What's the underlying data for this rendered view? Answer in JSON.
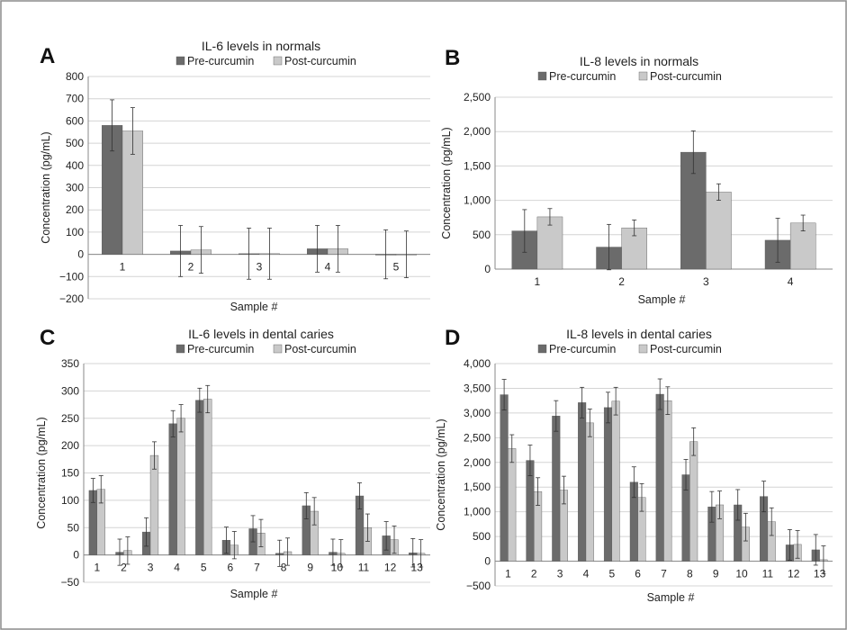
{
  "colors": {
    "pre": "#6b6b6b",
    "post": "#c9c9c9",
    "grid": "#d4d4d4",
    "axis": "#8a8a8a",
    "frame": "#8c8c8c"
  },
  "chart_data": [
    {
      "panel": "A",
      "type": "bar",
      "title": "IL-6 levels in normals",
      "xlabel": "Sample #",
      "ylabel": "Concentration (pg/mL)",
      "ylim": [
        -200,
        800
      ],
      "ytick_step": 100,
      "ytick_labels": [
        "−200",
        "−100",
        "0",
        "100",
        "200",
        "300",
        "400",
        "500",
        "600",
        "700",
        "800"
      ],
      "grid": true,
      "legend": "top",
      "categories": [
        "1",
        "2",
        "3",
        "4",
        "5"
      ],
      "series": [
        {
          "name": "Pre-curcumin",
          "color": "#6b6b6b",
          "values": [
            580,
            15,
            3,
            25,
            0
          ],
          "errors": [
            115,
            115,
            115,
            105,
            110
          ]
        },
        {
          "name": "Post-curcumin",
          "color": "#c9c9c9",
          "values": [
            555,
            20,
            3,
            25,
            0
          ],
          "errors": [
            105,
            105,
            115,
            105,
            105
          ]
        }
      ]
    },
    {
      "panel": "B",
      "type": "bar",
      "title": "IL-8 levels in normals",
      "xlabel": "Sample #",
      "ylabel": "Concentration (pg/mL)",
      "ylim": [
        0,
        2500
      ],
      "ytick_step": 500,
      "ytick_labels": [
        "0",
        "500",
        "1,000",
        "1,500",
        "2,000",
        "2,500"
      ],
      "grid": true,
      "legend": "top",
      "categories": [
        "1",
        "2",
        "3",
        "4"
      ],
      "series": [
        {
          "name": "Pre-curcumin",
          "color": "#6b6b6b",
          "values": [
            555,
            320,
            1700,
            420
          ],
          "errors": [
            310,
            330,
            310,
            320
          ]
        },
        {
          "name": "Post-curcumin",
          "color": "#c9c9c9",
          "values": [
            760,
            600,
            1120,
            670
          ],
          "errors": [
            120,
            115,
            120,
            115
          ]
        }
      ]
    },
    {
      "panel": "C",
      "type": "bar",
      "title": "IL-6 levels in dental caries",
      "xlabel": "Sample #",
      "ylabel": "Concentration (pg/mL)",
      "ylim": [
        -50,
        350
      ],
      "ytick_step": 50,
      "ytick_labels": [
        "−50",
        "0",
        "50",
        "100",
        "150",
        "200",
        "250",
        "300",
        "350"
      ],
      "grid": true,
      "legend": "top",
      "categories": [
        "1",
        "2",
        "3",
        "4",
        "5",
        "6",
        "7",
        "8",
        "9",
        "10",
        "11",
        "12",
        "13"
      ],
      "series": [
        {
          "name": "Pre-curcumin",
          "color": "#6b6b6b",
          "values": [
            118,
            5,
            42,
            240,
            283,
            27,
            48,
            3,
            90,
            5,
            108,
            35,
            4
          ],
          "errors": [
            22,
            24,
            26,
            24,
            22,
            24,
            24,
            24,
            24,
            24,
            24,
            26,
            26
          ]
        },
        {
          "name": "Post-curcumin",
          "color": "#c9c9c9",
          "values": [
            120,
            8,
            182,
            250,
            285,
            18,
            40,
            6,
            80,
            3,
            50,
            28,
            3
          ],
          "errors": [
            25,
            25,
            25,
            25,
            25,
            25,
            25,
            25,
            25,
            25,
            25,
            25,
            25
          ]
        }
      ]
    },
    {
      "panel": "D",
      "type": "bar",
      "title": "IL-8 levels in dental caries",
      "xlabel": "Sample #",
      "ylabel": "Concentration (pg/mL)",
      "ylim": [
        -500,
        4000
      ],
      "ytick_step": 500,
      "ytick_labels": [
        "−500",
        "0",
        "500",
        "1,000",
        "1,500",
        "2,000",
        "2,500",
        "3,000",
        "3,500",
        "4,000"
      ],
      "grid": true,
      "legend": "top",
      "categories": [
        "1",
        "2",
        "3",
        "4",
        "5",
        "6",
        "7",
        "8",
        "9",
        "10",
        "11",
        "12",
        "13"
      ],
      "series": [
        {
          "name": "Pre-curcumin",
          "color": "#6b6b6b",
          "values": [
            3370,
            2040,
            2940,
            3210,
            3110,
            1600,
            3380,
            1750,
            1100,
            1140,
            1310,
            330,
            230
          ],
          "errors": [
            310,
            310,
            310,
            310,
            310,
            310,
            310,
            310,
            310,
            310,
            310,
            310,
            310
          ]
        },
        {
          "name": "Post-curcumin",
          "color": "#c9c9c9",
          "values": [
            2280,
            1410,
            1440,
            2800,
            3240,
            1290,
            3250,
            2420,
            1140,
            690,
            800,
            340,
            30
          ],
          "errors": [
            280,
            280,
            280,
            280,
            280,
            280,
            280,
            280,
            280,
            280,
            280,
            280,
            280
          ]
        }
      ]
    }
  ]
}
